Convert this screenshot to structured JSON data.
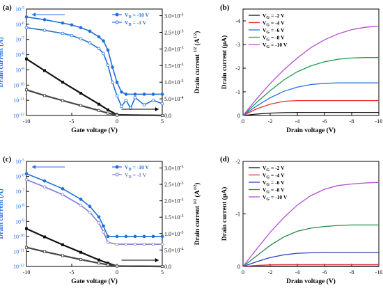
{
  "chart_data": [
    {
      "panel": "(a)",
      "type": "line",
      "xlabel": "Gate voltage (V)",
      "ylabel": "Drain current (A)",
      "y2label": "Drain current 1/2 (A1/2)",
      "xlim": [
        -10,
        5
      ],
      "ylim_log": [
        1e-12,
        1e-05
      ],
      "y2lim": [
        0,
        0.0032
      ],
      "y_scale": "log",
      "xticks": [
        "-10",
        "-5",
        "0",
        "5"
      ],
      "yticks": [
        "10-12",
        "10-11",
        "10-10",
        "10-9",
        "10-8",
        "10-7",
        "10-6",
        "10-5"
      ],
      "y2ticks": [
        "0.0",
        "5.0x10-4",
        "1.0x10-3",
        "1.5x10-3",
        "2.0x10-3",
        "2.5x10-3",
        "3.0x10-3"
      ],
      "legend_position": "top-right",
      "legend": [
        "VD = -10 V",
        "VD = -1 V"
      ],
      "series": [
        {
          "name": "VD = -10 V",
          "axis": "left",
          "marker": "filled-circle",
          "color": "#1f6fd8",
          "x": [
            -10,
            -8,
            -6,
            -5,
            -4,
            -3,
            -2,
            -1.5,
            -1,
            -0.5,
            0,
            0.5,
            1,
            2,
            3,
            4,
            5
          ],
          "y": [
            3e-06,
            2e-06,
            1.2e-06,
            9e-07,
            6e-07,
            3.5e-07,
            1.5e-07,
            8e-08,
            2e-08,
            1.5e-09,
            1.5e-10,
            3.5e-11,
            2.5e-11,
            2.5e-11,
            2.5e-11,
            2.5e-11,
            2.5e-11
          ]
        },
        {
          "name": "VD = -1 V",
          "axis": "left",
          "marker": "open-circle",
          "color": "#1f6fd8",
          "x": [
            -10,
            -8,
            -6,
            -5,
            -4,
            -3,
            -2,
            -1.5,
            -1,
            -0.5,
            0,
            0.5,
            1,
            1.5,
            2,
            3,
            4,
            5
          ],
          "y": [
            6e-07,
            4e-07,
            2.5e-07,
            1.8e-07,
            1.1e-07,
            6e-08,
            2.5e-08,
            1.2e-08,
            2e-09,
            1.5e-10,
            2e-11,
            4e-12,
            1e-11,
            3e-12,
            1.5e-11,
            5e-12,
            1e-11,
            6e-12
          ]
        },
        {
          "name": "sqrt(ID), VD = -10 V",
          "axis": "right",
          "marker": "filled-square",
          "color": "#111111",
          "x": [
            -10,
            -8,
            -6,
            -4,
            -2,
            -1,
            0,
            5
          ],
          "y": [
            0.0017,
            0.00135,
            0.001,
            0.00067,
            0.00034,
            0.00017,
            2e-05,
            0
          ]
        },
        {
          "name": "sqrt(ID), VD = -1 V",
          "axis": "right",
          "marker": "open-square",
          "color": "#444444",
          "x": [
            -10,
            -8,
            -6,
            -4,
            -2,
            -1,
            0,
            5
          ],
          "y": [
            0.00077,
            0.0006,
            0.00045,
            0.0003,
            0.00015,
            7e-05,
            1e-05,
            0
          ]
        }
      ],
      "arrows": [
        {
          "direction": "left",
          "axis": "left"
        },
        {
          "direction": "right",
          "axis": "right"
        }
      ]
    },
    {
      "panel": "(b)",
      "type": "line",
      "xlabel": "Drain voltage (V)",
      "ylabel": "Drain current (μA)",
      "xlim": [
        0,
        -10
      ],
      "ylim": [
        0,
        -4.5
      ],
      "xticks": [
        "0",
        "-2",
        "-4",
        "-6",
        "-8",
        "-10"
      ],
      "yticks": [
        "0",
        "-1",
        "-2",
        "-3",
        "-4"
      ],
      "legend_position": "top-left",
      "x": [
        0,
        -1,
        -2,
        -3,
        -4,
        -5,
        -6,
        -7,
        -8,
        -9,
        -10
      ],
      "series": [
        {
          "name": "VG = -2 V",
          "color": "#111111",
          "values": [
            0,
            -0.06,
            -0.1,
            -0.12,
            -0.13,
            -0.13,
            -0.13,
            -0.13,
            -0.13,
            -0.13,
            -0.13
          ]
        },
        {
          "name": "VG = -4 V",
          "color": "#e03030",
          "values": [
            0,
            -0.28,
            -0.48,
            -0.6,
            -0.63,
            -0.63,
            -0.63,
            -0.63,
            -0.63,
            -0.63,
            -0.63
          ]
        },
        {
          "name": "VG = -6 V",
          "color": "#2a6fd8",
          "values": [
            0,
            -0.4,
            -0.75,
            -1.02,
            -1.2,
            -1.31,
            -1.36,
            -1.38,
            -1.38,
            -1.38,
            -1.38
          ]
        },
        {
          "name": "VG = -8 V",
          "color": "#1f9a4a",
          "values": [
            0,
            -0.55,
            -1.05,
            -1.5,
            -1.85,
            -2.1,
            -2.27,
            -2.38,
            -2.43,
            -2.45,
            -2.45
          ]
        },
        {
          "name": "VG = -10 V",
          "color": "#b24fd6",
          "values": [
            0,
            -0.7,
            -1.35,
            -1.93,
            -2.43,
            -2.87,
            -3.2,
            -3.45,
            -3.63,
            -3.73,
            -3.78
          ]
        }
      ]
    },
    {
      "panel": "(c)",
      "type": "line",
      "xlabel": "Gate voltage (V)",
      "ylabel": "Drain current (A)",
      "y2label": "Drain current 1/2 (A1/2)",
      "xlim": [
        -10,
        5
      ],
      "ylim_log": [
        1e-12,
        1e-05
      ],
      "y2lim": [
        0,
        0.0032
      ],
      "y_scale": "log",
      "xticks": [
        "-10",
        "-5",
        "0",
        "5"
      ],
      "yticks": [
        "10-12",
        "10-11",
        "10-10",
        "10-9",
        "10-8",
        "10-7",
        "10-6",
        "10-5"
      ],
      "y2ticks": [
        "0.0",
        "5.0x10-4",
        "1.0x10-3",
        "1.5x10-3",
        "2.0x10-3",
        "2.5x10-3",
        "3.0x10-3"
      ],
      "legend_position": "top-right",
      "legend": [
        "VD = -10 V",
        "VD = -1 V"
      ],
      "series": [
        {
          "name": "VD = -10 V",
          "axis": "left",
          "marker": "filled-circle",
          "color": "#1f6fd8",
          "x": [
            -10,
            -8,
            -6,
            -4,
            -3,
            -2,
            -1.5,
            -1,
            0,
            1,
            2,
            3,
            4,
            5
          ],
          "y": [
            1.5e-06,
            5e-07,
            1.5e-07,
            3e-08,
            1e-08,
            2e-09,
            5e-10,
            1e-10,
            1e-10,
            1e-10,
            1e-10,
            1e-10,
            1e-10,
            1e-10
          ]
        },
        {
          "name": "VD = -1 V",
          "axis": "left",
          "marker": "open-circle",
          "color": "#7a7ad8",
          "x": [
            -10,
            -8,
            -6,
            -4,
            -3,
            -2,
            -1.5,
            -1,
            0,
            1,
            2,
            3,
            4,
            5
          ],
          "y": [
            6e-07,
            2e-07,
            6e-08,
            1.2e-08,
            4e-09,
            8e-10,
            2e-10,
            4e-11,
            3e-11,
            3e-11,
            3e-11,
            3e-11,
            3e-11,
            3e-11
          ]
        },
        {
          "name": "sqrt(ID), VD = -10 V",
          "axis": "right",
          "marker": "filled-square",
          "color": "#111111",
          "x": [
            -10,
            -8,
            -6,
            -4,
            -2,
            -1,
            0,
            5
          ],
          "y": [
            0.00115,
            0.0009,
            0.00066,
            0.00043,
            0.0002,
            0.0001,
            1e-05,
            0
          ]
        },
        {
          "name": "sqrt(ID), VD = -1 V",
          "axis": "right",
          "marker": "open-square",
          "color": "#444444",
          "x": [
            -10,
            -8,
            -6,
            -4,
            -2,
            -1,
            0,
            5
          ],
          "y": [
            0.00058,
            0.00045,
            0.00033,
            0.00021,
            0.0001,
            5e-05,
            1e-05,
            0
          ]
        }
      ],
      "arrows": [
        {
          "direction": "left",
          "axis": "left"
        },
        {
          "direction": "right",
          "axis": "right"
        }
      ]
    },
    {
      "panel": "(d)",
      "type": "line",
      "xlabel": "Drain voltage (V)",
      "ylabel": "Drain current (μA)",
      "xlim": [
        0,
        -10
      ],
      "ylim": [
        0,
        -2
      ],
      "xticks": [
        "0",
        "-2",
        "-4",
        "-6",
        "-8",
        "-10"
      ],
      "yticks": [
        "0",
        "-1",
        "-2"
      ],
      "legend_position": "top-left",
      "x": [
        0,
        -1,
        -2,
        -3,
        -4,
        -5,
        -6,
        -7,
        -8,
        -9,
        -10
      ],
      "series": [
        {
          "name": "VG = -2 V",
          "color": "#111111",
          "values": [
            0,
            -0.003,
            -0.005,
            -0.006,
            -0.006,
            -0.006,
            -0.006,
            -0.006,
            -0.006,
            -0.006,
            -0.006
          ]
        },
        {
          "name": "VG = -4 V",
          "color": "#e03030",
          "values": [
            0,
            -0.02,
            -0.03,
            -0.035,
            -0.035,
            -0.035,
            -0.035,
            -0.035,
            -0.035,
            -0.035,
            -0.035
          ]
        },
        {
          "name": "VG = -6 V",
          "color": "#2a3fb8",
          "values": [
            0,
            -0.09,
            -0.17,
            -0.22,
            -0.25,
            -0.26,
            -0.27,
            -0.27,
            -0.27,
            -0.27,
            -0.27
          ]
        },
        {
          "name": "VG = -8 V",
          "color": "#1f8a4a",
          "values": [
            0,
            -0.2,
            -0.4,
            -0.56,
            -0.67,
            -0.73,
            -0.76,
            -0.78,
            -0.79,
            -0.79,
            -0.79
          ]
        },
        {
          "name": "VG = -10 V",
          "color": "#b24fd6",
          "values": [
            0,
            -0.33,
            -0.65,
            -0.93,
            -1.17,
            -1.35,
            -1.47,
            -1.54,
            -1.57,
            -1.59,
            -1.6
          ]
        }
      ]
    }
  ]
}
